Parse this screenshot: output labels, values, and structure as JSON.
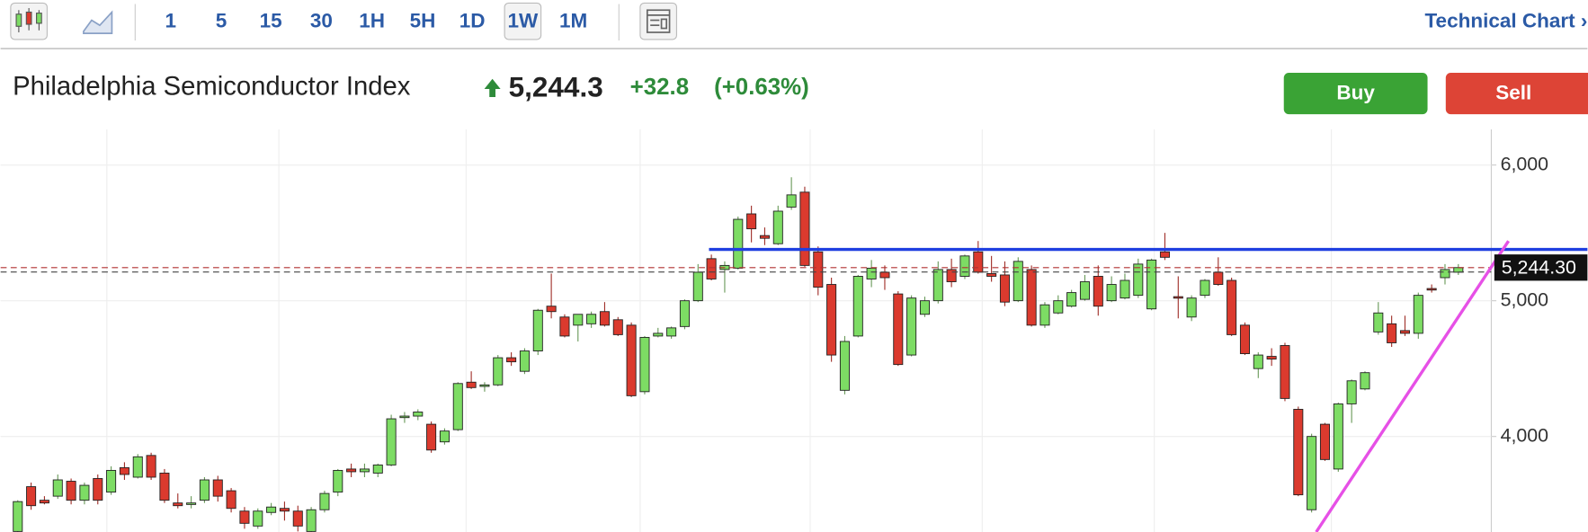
{
  "toolbar": {
    "intervals": [
      "1",
      "5",
      "15",
      "30",
      "1H",
      "5H",
      "1D",
      "1W",
      "1M"
    ],
    "selected": "1W",
    "link": "Technical Chart ›"
  },
  "quote": {
    "name": "Philadelphia Semiconductor Index",
    "price": "5,244.3",
    "change": "+32.8",
    "change_percent": "(+0.63%)"
  },
  "actions": {
    "buy": "Buy",
    "sell": "Sell"
  },
  "chart_data": {
    "type": "candlestick",
    "open": [
      3300,
      3630,
      3530,
      3560,
      3670,
      3530,
      3690,
      3590,
      3770,
      3700,
      3860,
      3730,
      3510,
      3500,
      3530,
      3680,
      3600,
      3450,
      3340,
      3440,
      3470,
      3450,
      3300,
      3460,
      3590,
      3760,
      3740,
      3730,
      3790,
      4140,
      4150,
      4090,
      3960,
      4050,
      4400,
      4370,
      4380,
      4580,
      4480,
      4630,
      4960,
      4880,
      4820,
      4830,
      4920,
      4860,
      4820,
      4330,
      4740,
      4740,
      4810,
      5000,
      5310,
      5230,
      5240,
      5640,
      5480,
      5420,
      5690,
      5800,
      5360,
      5120,
      4340,
      4740,
      5160,
      5210,
      5050,
      4600,
      4900,
      5000,
      5230,
      5180,
      5360,
      5200,
      5190,
      5000,
      5230,
      4820,
      4910,
      4960,
      5010,
      5180,
      5000,
      5020,
      5040,
      4940,
      5360,
      5030,
      4880,
      5040,
      5210,
      5150,
      4820,
      4500,
      4590,
      4670,
      4200,
      3460,
      4090,
      3760,
      4240,
      4350,
      4770,
      4830,
      4780,
      4760,
      5090,
      5170,
      5210
    ],
    "high": [
      3530,
      3660,
      3560,
      3720,
      3690,
      3660,
      3720,
      3780,
      3810,
      3870,
      3880,
      3760,
      3580,
      3560,
      3700,
      3710,
      3620,
      3480,
      3470,
      3510,
      3520,
      3490,
      3480,
      3600,
      3760,
      3800,
      3800,
      3800,
      4160,
      4180,
      4200,
      4110,
      4060,
      4400,
      4480,
      4400,
      4600,
      4620,
      4650,
      4940,
      5200,
      4900,
      4900,
      4920,
      4990,
      4880,
      4840,
      4740,
      4800,
      4810,
      5010,
      5270,
      5340,
      5290,
      5620,
      5700,
      5540,
      5700,
      5910,
      5840,
      5400,
      5170,
      4740,
      5190,
      5300,
      5260,
      5070,
      5040,
      5030,
      5290,
      5310,
      5340,
      5440,
      5330,
      5290,
      5320,
      5260,
      4990,
      5040,
      5080,
      5190,
      5260,
      5180,
      5200,
      5310,
      5310,
      5500,
      5180,
      5040,
      5160,
      5320,
      5170,
      4840,
      4620,
      4650,
      4690,
      4220,
      4020,
      4100,
      4250,
      4420,
      4480,
      4990,
      4890,
      4890,
      5060,
      5120,
      5270,
      5270
    ],
    "low": [
      3290,
      3460,
      3500,
      3540,
      3500,
      3500,
      3500,
      3570,
      3680,
      3690,
      3680,
      3510,
      3470,
      3470,
      3510,
      3520,
      3440,
      3320,
      3320,
      3420,
      3380,
      3300,
      3290,
      3440,
      3560,
      3700,
      3700,
      3700,
      3780,
      4100,
      4120,
      3880,
      3940,
      4040,
      4350,
      4330,
      4370,
      4520,
      4460,
      4600,
      4870,
      4730,
      4700,
      4800,
      4810,
      4740,
      4290,
      4310,
      4730,
      4720,
      4790,
      4990,
      5150,
      5060,
      5230,
      5430,
      5410,
      5410,
      5670,
      5250,
      5040,
      4550,
      4310,
      4730,
      5100,
      5080,
      4520,
      4590,
      4880,
      4980,
      5100,
      5160,
      5200,
      5140,
      4960,
      4990,
      4810,
      4800,
      4900,
      4950,
      5000,
      4890,
      4990,
      5010,
      5020,
      4930,
      5300,
      4870,
      4850,
      5020,
      5110,
      4740,
      4600,
      4430,
      4520,
      4260,
      3560,
      3440,
      3820,
      3740,
      4100,
      4340,
      4750,
      4660,
      4740,
      4720,
      5060,
      5120,
      5190
    ],
    "close": [
      3520,
      3490,
      3510,
      3680,
      3530,
      3640,
      3530,
      3750,
      3720,
      3850,
      3700,
      3530,
      3490,
      3510,
      3680,
      3560,
      3470,
      3360,
      3450,
      3480,
      3450,
      3340,
      3460,
      3580,
      3750,
      3740,
      3760,
      3790,
      4130,
      4150,
      4180,
      3900,
      4040,
      4390,
      4360,
      4380,
      4580,
      4550,
      4630,
      4930,
      4920,
      4740,
      4900,
      4900,
      4820,
      4750,
      4300,
      4730,
      4760,
      4800,
      5000,
      5210,
      5160,
      5260,
      5600,
      5530,
      5460,
      5660,
      5780,
      5260,
      5100,
      4600,
      4700,
      5180,
      5240,
      5170,
      4530,
      5020,
      5000,
      5230,
      5140,
      5330,
      5210,
      5180,
      4990,
      5290,
      4820,
      4970,
      5000,
      5060,
      5140,
      4960,
      5120,
      5150,
      5270,
      5300,
      5320,
      5020,
      5020,
      5150,
      5120,
      4750,
      4610,
      4600,
      4570,
      4280,
      3570,
      4000,
      3830,
      4240,
      4410,
      4470,
      4910,
      4690,
      4760,
      5040,
      5080,
      5230,
      5244.3
    ],
    "up_color": "#7ddc64",
    "down_color": "#db3a2e",
    "ylim": [
      3296,
      6262
    ],
    "yticks": [
      {
        "value": 4000,
        "label": "4,000"
      },
      {
        "value": 5000,
        "label": "5,000"
      },
      {
        "value": 6000,
        "label": "6,000"
      }
    ],
    "grid": true,
    "last_price": {
      "value": 5244.3,
      "label": "5,244.30"
    },
    "previous_close": 5211.5,
    "resistance": 5378,
    "trendline": [
      3296,
      5440
    ]
  }
}
